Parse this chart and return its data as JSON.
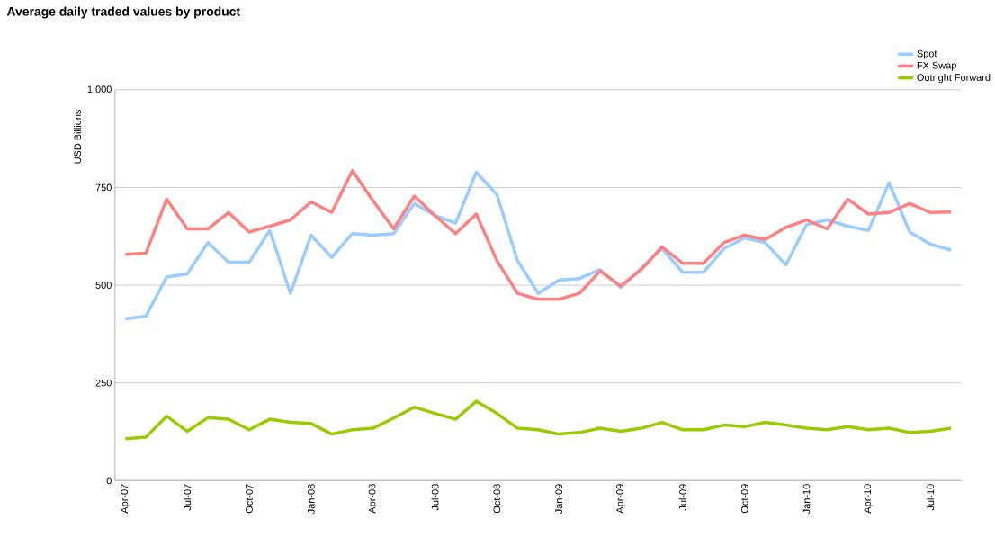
{
  "chart_data": {
    "type": "line",
    "title": "Average daily traded values by product",
    "ylabel": "USD Billions",
    "categories": [
      "Apr-07",
      null,
      null,
      "Jul-07",
      null,
      null,
      "Oct-07",
      null,
      null,
      "Jan-08",
      null,
      null,
      "Apr-08",
      null,
      null,
      "Jul-08",
      null,
      null,
      "Oct-08",
      null,
      null,
      "Jan-09",
      null,
      null,
      "Apr-09",
      null,
      null,
      "Jul-09",
      null,
      null,
      "Oct-09",
      null,
      null,
      "Jan-10",
      null,
      null,
      "Apr-10",
      null,
      null,
      "Jul-10",
      null
    ],
    "ylim": [
      0,
      1000
    ],
    "yticks": [
      0,
      250,
      500,
      750,
      {
        "value": 1000,
        "label": "1,000"
      }
    ],
    "grid": "y",
    "legend": "top right",
    "marker": "none",
    "line_style": "solid",
    "series": [
      {
        "name": "Spot",
        "color": "#99ccff",
        "values": [
          414,
          421,
          521,
          529,
          609,
          559,
          559,
          640,
          479,
          628,
          571,
          632,
          628,
          632,
          709,
          678,
          659,
          789,
          732,
          563,
          479,
          513,
          517,
          540,
          494,
          544,
          594,
          533,
          533,
          594,
          621,
          609,
          552,
          655,
          667,
          651,
          640,
          762,
          636,
          605,
          590
        ]
      },
      {
        "name": "FX Swap",
        "color": "#ff8080",
        "values": [
          579,
          582,
          720,
          644,
          644,
          686,
          636,
          651,
          667,
          713,
          686,
          793,
          716,
          644,
          728,
          678,
          632,
          682,
          563,
          479,
          464,
          464,
          479,
          536,
          498,
          540,
          598,
          556,
          556,
          609,
          628,
          617,
          648,
          667,
          644,
          720,
          682,
          686,
          709,
          686,
          687
        ]
      },
      {
        "name": "Outright Forward",
        "color": "#99cc00",
        "values": [
          107,
          111,
          165,
          126,
          161,
          157,
          130,
          157,
          149,
          146,
          119,
          130,
          134,
          160,
          188,
          172,
          157,
          203,
          172,
          134,
          130,
          119,
          123,
          134,
          126,
          134,
          149,
          130,
          130,
          142,
          138,
          149,
          142,
          134,
          130,
          138,
          130,
          134,
          123,
          126,
          134
        ]
      }
    ]
  }
}
